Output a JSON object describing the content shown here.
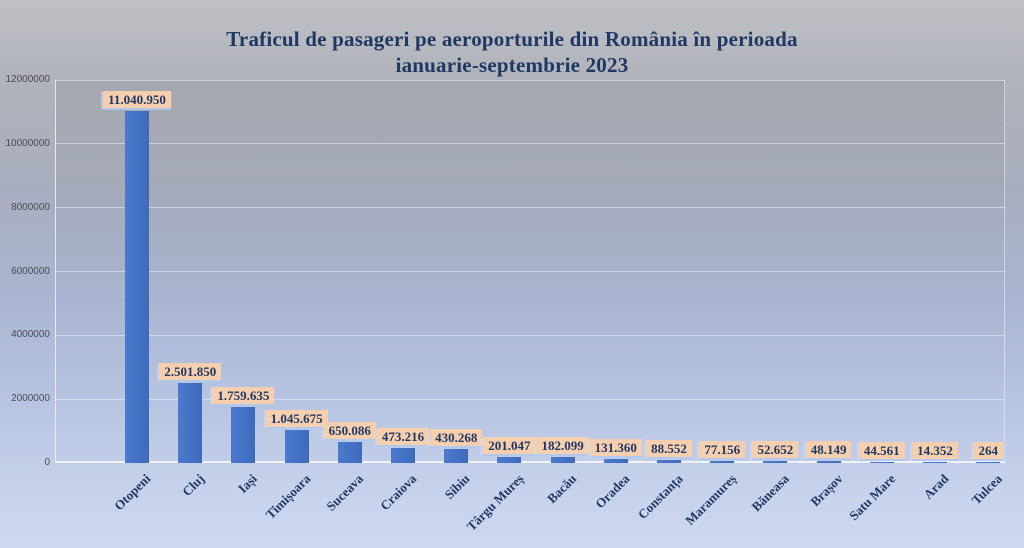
{
  "chart_data": {
    "type": "bar",
    "title_line1": "Traficul de pasageri pe aeroporturile din România în perioada",
    "title_line2": "ianuarie-septembrie 2023",
    "title_color": "#1f3864",
    "categories": [
      "Otopeni",
      "Cluj",
      "Iași",
      "Timișoara",
      "Suceava",
      "Craiova",
      "Sibiu",
      "Târgu Mureș",
      "Bacău",
      "Oradea",
      "Constanța",
      "Maramureș",
      "Băneasa",
      "Brașov",
      "Satu Mare",
      "Arad",
      "Tulcea"
    ],
    "values": [
      11040950,
      2501850,
      1759635,
      1045675,
      650086,
      473216,
      430268,
      201047,
      182099,
      131360,
      88552,
      77156,
      52652,
      48149,
      44561,
      14352,
      264
    ],
    "value_labels": [
      "11.040.950",
      "2.501.850",
      "1.759.635",
      "1.045.675",
      "650.086",
      "473.216",
      "430.268",
      "201.047",
      "182.099",
      "131.360",
      "88.552",
      "77.156",
      "52.652",
      "48.149",
      "44.561",
      "14.352",
      "264"
    ],
    "xlabel": "",
    "ylabel": "",
    "ylim": [
      0,
      12000000
    ],
    "ytick_interval": 2000000,
    "ytick_labels": [
      "0",
      "2000000",
      "4000000",
      "6000000",
      "8000000",
      "10000000",
      "12000000"
    ],
    "grid": true,
    "legend": "none",
    "bar_color": "#4472c4",
    "value_label_bg": "#f6cfae",
    "value_label_text": "#1f3864",
    "background_style": "gray-to-blue vertical gradient"
  }
}
